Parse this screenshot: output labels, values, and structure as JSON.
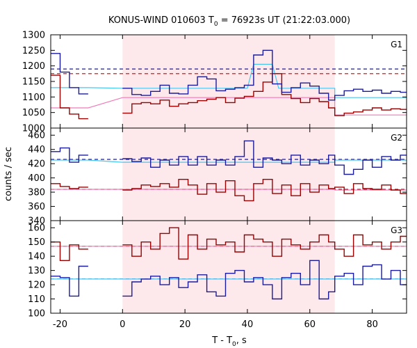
{
  "chart_data": {
    "type": "line",
    "title": "KONUS-WIND 010603 T",
    "title_sub": "0",
    "title_rest": " = 76923s UT (21:22:03.000)",
    "xlabel": "T - T",
    "xlabel_sub": "0",
    "xlabel_rest": ", s",
    "ylabel": "counts / sec",
    "xlim": [
      -23,
      91
    ],
    "xticks": [
      -20,
      0,
      20,
      40,
      60,
      80
    ],
    "shaded_interval": [
      0,
      68
    ],
    "colors": {
      "shade": "#fde8ec",
      "series_a": "#9a0000",
      "series_b": "#1a1a9c",
      "fit_a": "#f07ab6",
      "fit_b": "#46c7ef",
      "bg_a": "#cc0000",
      "bg_b": "#1a1a9c"
    },
    "panels": [
      {
        "label": "G1",
        "ylim": [
          1000,
          1300
        ],
        "yticks": [
          1000,
          1050,
          1100,
          1150,
          1200,
          1250,
          1300
        ],
        "background_levels": {
          "series_a": 1175,
          "series_b": 1190
        },
        "series_a": {
          "edges": [
            -23,
            -20,
            -17,
            -14,
            -11
          ],
          "values": [
            1170,
            1065,
            1045,
            1030
          ],
          "edges2": [
            0,
            3,
            6,
            9,
            12,
            15,
            18,
            21,
            24,
            27,
            30,
            33,
            36,
            39,
            42,
            45,
            48,
            51,
            54,
            57,
            60,
            63,
            66,
            68,
            71,
            74,
            77,
            80,
            83,
            86,
            89,
            91
          ],
          "values2": [
            1048,
            1078,
            1082,
            1078,
            1090,
            1070,
            1078,
            1082,
            1088,
            1093,
            1098,
            1082,
            1096,
            1102,
            1118,
            1148,
            1175,
            1108,
            1095,
            1082,
            1095,
            1085,
            1065,
            1040,
            1048,
            1052,
            1058,
            1065,
            1058,
            1062,
            1060
          ]
        },
        "series_b": {
          "edges": [
            -23,
            -20,
            -17,
            -14,
            -11
          ],
          "values": [
            1240,
            1180,
            1130,
            1110
          ],
          "edges2": [
            0,
            3,
            6,
            9,
            12,
            15,
            18,
            21,
            24,
            27,
            30,
            33,
            36,
            39,
            42,
            45,
            48,
            51,
            54,
            57,
            60,
            63,
            66,
            68,
            71,
            74,
            77,
            80,
            83,
            86,
            89,
            91
          ],
          "values2": [
            1128,
            1108,
            1105,
            1118,
            1138,
            1112,
            1110,
            1138,
            1165,
            1158,
            1120,
            1125,
            1130,
            1138,
            1235,
            1250,
            1142,
            1115,
            1130,
            1145,
            1135,
            1112,
            1090,
            1105,
            1120,
            1125,
            1118,
            1122,
            1112,
            1118,
            1115
          ]
        },
        "fits": {
          "fit_a": [
            [
              -23,
              1065
            ],
            [
              -11,
              1065
            ],
            [
              0,
              1098
            ],
            [
              68,
              1098
            ],
            [
              68,
              1042
            ],
            [
              91,
              1042
            ]
          ],
          "fit_b": [
            [
              -23,
              1130
            ],
            [
              -11,
              1130
            ],
            [
              0,
              1128
            ],
            [
              40,
              1128
            ],
            [
              42,
              1205
            ],
            [
              48,
              1205
            ],
            [
              50,
              1128
            ],
            [
              68,
              1128
            ],
            [
              68,
              1098
            ],
            [
              91,
              1098
            ]
          ]
        }
      },
      {
        "label": "G2",
        "ylim": [
          340,
          470
        ],
        "yticks": [
          340,
          360,
          380,
          400,
          420,
          440,
          460
        ],
        "background_levels": {
          "series_a": 384,
          "series_b": 426
        },
        "series_a": {
          "edges": [
            -23,
            -20,
            -17,
            -14,
            -11
          ],
          "values": [
            392,
            388,
            385,
            387
          ],
          "edges2": [
            0,
            3,
            6,
            9,
            12,
            15,
            18,
            21,
            24,
            27,
            30,
            33,
            36,
            39,
            42,
            45,
            48,
            51,
            54,
            57,
            60,
            63,
            66,
            68,
            71,
            74,
            77,
            80,
            83,
            86,
            89,
            91
          ],
          "values2": [
            383,
            385,
            390,
            388,
            392,
            387,
            398,
            390,
            377,
            392,
            380,
            396,
            375,
            368,
            392,
            398,
            378,
            390,
            375,
            392,
            380,
            390,
            385,
            387,
            378,
            392,
            385,
            384,
            390,
            383,
            378
          ]
        },
        "series_b": {
          "edges": [
            -23,
            -20,
            -17,
            -14,
            -11
          ],
          "values": [
            437,
            442,
            422,
            432
          ],
          "edges2": [
            0,
            3,
            6,
            9,
            12,
            15,
            18,
            21,
            24,
            27,
            30,
            33,
            36,
            39,
            42,
            45,
            48,
            51,
            54,
            57,
            60,
            63,
            66,
            68,
            71,
            74,
            77,
            80,
            83,
            86,
            89,
            91
          ],
          "values2": [
            427,
            423,
            428,
            415,
            425,
            418,
            430,
            418,
            430,
            418,
            425,
            418,
            430,
            452,
            415,
            428,
            425,
            420,
            432,
            418,
            425,
            420,
            432,
            418,
            405,
            412,
            425,
            415,
            430,
            425,
            432
          ]
        },
        "fits": {
          "fit_a": [
            [
              -23,
              384
            ],
            [
              -11,
              384
            ],
            [
              0,
              384
            ],
            [
              68,
              384
            ],
            [
              68,
              383
            ],
            [
              91,
              383
            ]
          ],
          "fit_b": [
            [
              -23,
              425
            ],
            [
              -11,
              425
            ],
            [
              0,
              422
            ],
            [
              68,
              422
            ],
            [
              68,
              425
            ],
            [
              91,
              425
            ]
          ]
        }
      },
      {
        "label": "G3",
        "ylim": [
          100,
          165
        ],
        "yticks": [
          100,
          110,
          120,
          130,
          140,
          150,
          160
        ],
        "background_levels": {
          "series_a": 147,
          "series_b": 124
        },
        "series_a": {
          "edges": [
            -23,
            -20,
            -17,
            -14,
            -11
          ],
          "values": [
            150,
            137,
            148,
            145
          ],
          "edges2": [
            0,
            3,
            6,
            9,
            12,
            15,
            18,
            21,
            24,
            27,
            30,
            33,
            36,
            39,
            42,
            45,
            48,
            51,
            54,
            57,
            60,
            63,
            66,
            68,
            71,
            74,
            77,
            80,
            83,
            86,
            89,
            91
          ],
          "values2": [
            148,
            140,
            150,
            145,
            156,
            160,
            138,
            155,
            145,
            152,
            148,
            150,
            143,
            155,
            152,
            150,
            140,
            152,
            148,
            145,
            150,
            155,
            150,
            145,
            140,
            155,
            148,
            150,
            145,
            150,
            154
          ]
        },
        "series_b": {
          "edges": [
            -23,
            -20,
            -17,
            -14,
            -11
          ],
          "values": [
            126,
            125,
            112,
            133
          ],
          "edges2": [
            0,
            3,
            6,
            9,
            12,
            15,
            18,
            21,
            24,
            27,
            30,
            33,
            36,
            39,
            42,
            45,
            48,
            51,
            54,
            57,
            60,
            63,
            66,
            68,
            71,
            74,
            77,
            80,
            83,
            86,
            89,
            91
          ],
          "values2": [
            112,
            122,
            124,
            126,
            120,
            125,
            118,
            122,
            127,
            115,
            112,
            128,
            130,
            122,
            125,
            120,
            110,
            125,
            128,
            120,
            137,
            110,
            115,
            126,
            128,
            120,
            133,
            134,
            124,
            130,
            120
          ]
        },
        "fits": {
          "fit_a": [
            [
              -23,
              147
            ],
            [
              -11,
              147
            ],
            [
              0,
              147
            ],
            [
              68,
              147
            ],
            [
              68,
              147
            ],
            [
              91,
              147
            ]
          ],
          "fit_b": [
            [
              -23,
              124
            ],
            [
              -11,
              124
            ],
            [
              0,
              124
            ],
            [
              68,
              124
            ],
            [
              68,
              124
            ],
            [
              91,
              124
            ]
          ]
        }
      }
    ]
  }
}
